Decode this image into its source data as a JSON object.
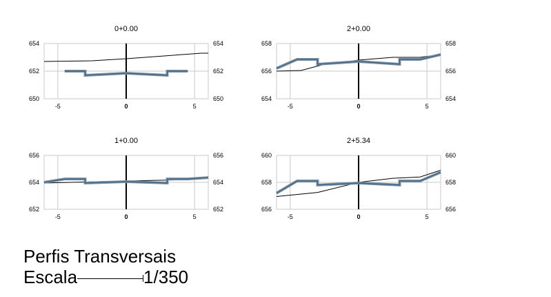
{
  "chart_data": [
    {
      "type": "line",
      "title": "0+0.00",
      "xlim": [
        -6,
        6
      ],
      "ylim": [
        650,
        654
      ],
      "xticks": [
        "-5",
        "0",
        "5"
      ],
      "yticks": [
        "650",
        "652",
        "654"
      ],
      "series": [
        {
          "role": "terrain",
          "x": [
            -6,
            -2.5,
            0,
            5.5,
            6
          ],
          "y": [
            652.7,
            652.75,
            652.9,
            653.3,
            653.3
          ]
        },
        {
          "role": "section",
          "x": [
            -4.5,
            -3,
            -3,
            0,
            3,
            3,
            4.5
          ],
          "y": [
            652.0,
            652.0,
            651.7,
            651.85,
            651.7,
            652.0,
            652.0
          ]
        }
      ]
    },
    {
      "type": "line",
      "title": "2+0.00",
      "xlim": [
        -6,
        6
      ],
      "ylim": [
        654,
        658
      ],
      "xticks": [
        "-5",
        "0",
        "5"
      ],
      "yticks": [
        "654",
        "656",
        "658"
      ],
      "series": [
        {
          "role": "terrain",
          "x": [
            -6,
            -4.2,
            -2.5,
            0,
            2.5,
            4.5,
            6
          ],
          "y": [
            656.0,
            656.05,
            656.5,
            656.8,
            657.0,
            657.0,
            657.2
          ]
        },
        {
          "role": "section",
          "x": [
            -6,
            -4.5,
            -3,
            -3,
            0,
            3,
            3,
            4.5,
            6
          ],
          "y": [
            656.2,
            656.85,
            656.85,
            656.5,
            656.7,
            656.5,
            656.85,
            656.85,
            657.2
          ]
        }
      ]
    },
    {
      "type": "line",
      "title": "1+0.00",
      "xlim": [
        -6,
        6
      ],
      "ylim": [
        652,
        656
      ],
      "xticks": [
        "-5",
        "0",
        "5"
      ],
      "yticks": [
        "652",
        "654",
        "656"
      ],
      "series": [
        {
          "role": "terrain",
          "x": [
            -6,
            0,
            4.5,
            6
          ],
          "y": [
            653.95,
            654.1,
            654.2,
            654.38
          ]
        },
        {
          "role": "section",
          "x": [
            -6,
            -4.5,
            -3,
            -3,
            0,
            3,
            3,
            4.5,
            6
          ],
          "y": [
            654.0,
            654.25,
            654.25,
            653.95,
            654.05,
            653.95,
            654.25,
            654.25,
            654.35
          ]
        }
      ]
    },
    {
      "type": "line",
      "title": "2+5.34",
      "xlim": [
        -6,
        6
      ],
      "ylim": [
        656,
        660
      ],
      "xticks": [
        "-5",
        "0",
        "5"
      ],
      "yticks": [
        "656",
        "658",
        "660"
      ],
      "series": [
        {
          "role": "terrain",
          "x": [
            -6,
            -3,
            0,
            2.5,
            4.5,
            6
          ],
          "y": [
            656.95,
            657.25,
            658.0,
            658.3,
            658.4,
            658.9
          ]
        },
        {
          "role": "section",
          "x": [
            -6,
            -4.5,
            -3,
            -3,
            0,
            3,
            3,
            4.5,
            6
          ],
          "y": [
            657.2,
            658.1,
            658.1,
            657.8,
            657.95,
            657.8,
            658.1,
            658.1,
            658.75
          ]
        }
      ]
    }
  ],
  "caption": {
    "title": "Perfis Transversais",
    "scale_label": "Escala",
    "scale_value": "1/350"
  },
  "colors": {
    "terrain": "#000000",
    "section": "#3d5f7c",
    "section_fill": "#7a93a6",
    "grid": "#c8c8c8",
    "axis": "#000000"
  }
}
